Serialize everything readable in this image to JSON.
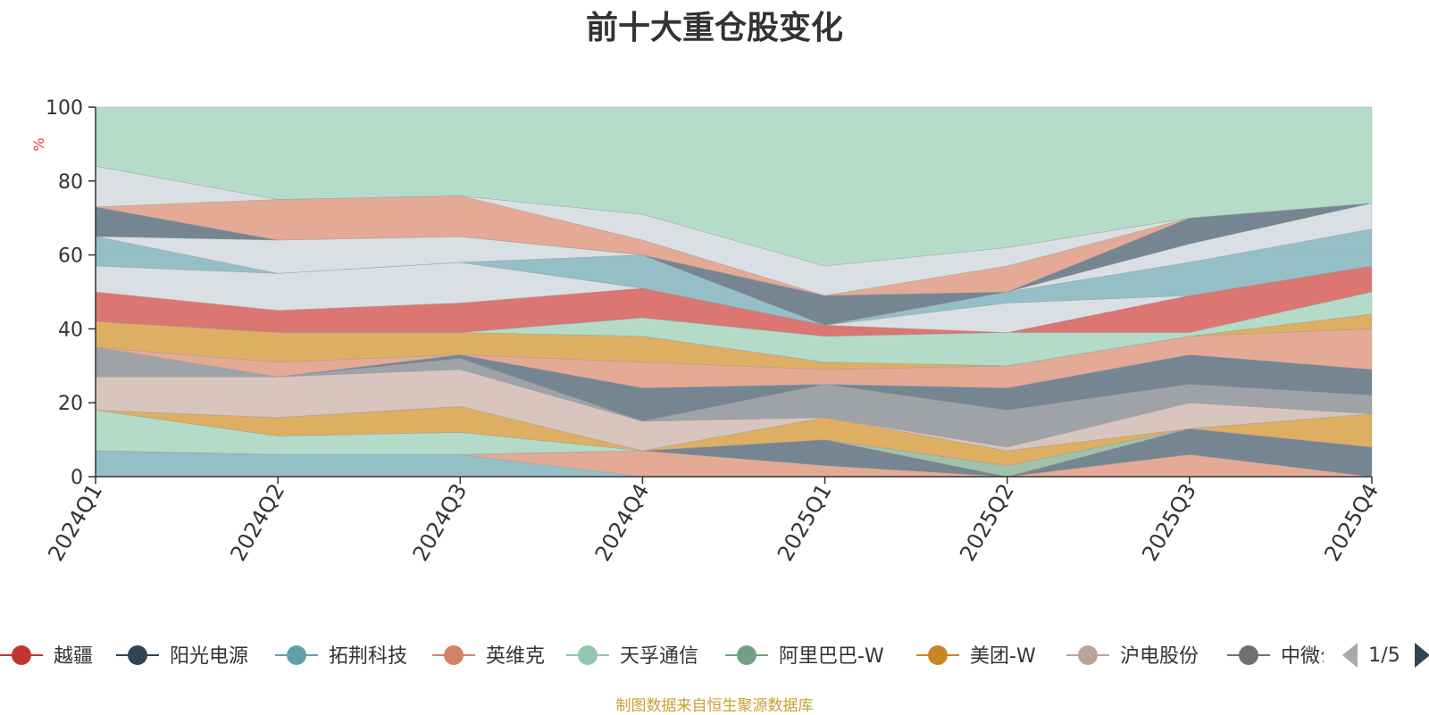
{
  "chart_data": {
    "type": "area",
    "stacked": true,
    "title": "前十大重仓股变化",
    "ylabel": "%",
    "ylim": [
      0,
      100
    ],
    "y_ticks": [
      0,
      20,
      40,
      60,
      80,
      100
    ],
    "categories": [
      "2024Q1",
      "2024Q2",
      "2024Q3",
      "2024Q4",
      "2025Q1",
      "2025Q2",
      "2025Q3",
      "2025Q4"
    ],
    "series": [
      {
        "name": "拓荆科技",
        "color": "#8fbcc3",
        "values": [
          7,
          6,
          6,
          0,
          0,
          0,
          0,
          0
        ]
      },
      {
        "name": "英维克",
        "color": "#e3a590",
        "values": [
          0,
          0,
          0,
          7,
          7,
          0,
          6,
          8
        ]
      },
      {
        "name": "越疆",
        "color": "#d96f6c",
        "values": [
          0,
          0,
          0,
          0,
          3,
          0,
          0,
          0
        ]
      },
      {
        "name": "阳光电源",
        "color": "#6e7f8c",
        "values": [
          0,
          0,
          0,
          0,
          0,
          0,
          7,
          0
        ]
      },
      {
        "name": "阿里巴巴-W",
        "color": "#9bbfa6",
        "values": [
          0,
          0,
          0,
          0,
          0,
          0,
          0,
          0
        ]
      },
      {
        "name": "天孚通信",
        "color": "#afd9c4",
        "values": [
          11,
          5,
          7,
          1,
          6,
          1,
          0,
          0
        ]
      },
      {
        "name": "美团-W",
        "color": "#dcaa5a",
        "values": [
          0,
          5,
          6,
          0,
          0,
          0,
          0,
          0
        ]
      },
      {
        "name": "沪电股份",
        "color": "#d6c2bb",
        "values": [
          9,
          11,
          10,
          7,
          0,
          6,
          0,
          0
        ]
      },
      {
        "name": "中微公司",
        "color": "#9a9da2",
        "values": [
          8,
          0,
          0,
          0,
          0,
          10,
          0,
          0
        ]
      }
    ],
    "legend": [
      "越疆",
      "阳光电源",
      "拓荆科技",
      "英维克",
      "天孚通信",
      "阿里巴巴-W",
      "美团-W",
      "沪电股份",
      "中微公司"
    ],
    "legend_colors": [
      "#c23531",
      "#2f4554",
      "#61a0a8",
      "#d48265",
      "#91c7ae",
      "#749f83",
      "#ca8622",
      "#bda29a",
      "#6e7074"
    ],
    "legend_page": "1/5"
  },
  "layers": [
    [
      0,
      0,
      0,
      0,
      0,
      0,
      0,
      0
    ],
    [
      7,
      6,
      6,
      0,
      0,
      0,
      0,
      0
    ],
    [
      7,
      6,
      6,
      7,
      3,
      0,
      6,
      0
    ],
    [
      7,
      6,
      6,
      7,
      10,
      0,
      13,
      8
    ],
    [
      7,
      6,
      6,
      7,
      10,
      3,
      13,
      8
    ],
    [
      18,
      11,
      12,
      7,
      10,
      3,
      13,
      8
    ],
    [
      18,
      16,
      19,
      7,
      16,
      7,
      13,
      17
    ],
    [
      27,
      27,
      29,
      15,
      16,
      8,
      20,
      17
    ],
    [
      35,
      27,
      32,
      15,
      25,
      18,
      25,
      22
    ],
    [
      35,
      27,
      33,
      24,
      25,
      24,
      33,
      29
    ],
    [
      35,
      31,
      33,
      31,
      29,
      30,
      38,
      40
    ],
    [
      42,
      39,
      39,
      38,
      31,
      30,
      38,
      44
    ],
    [
      42,
      39,
      39,
      43,
      38,
      39,
      39,
      50
    ],
    [
      50,
      45,
      47,
      51,
      41,
      39,
      49,
      57
    ],
    [
      57,
      55,
      58,
      51,
      41,
      47,
      49,
      57
    ],
    [
      65,
      55,
      58,
      60,
      41,
      50,
      58,
      67
    ],
    [
      65,
      64,
      65,
      60,
      41,
      50,
      63,
      74
    ],
    [
      73,
      64,
      65,
      60,
      49,
      50,
      70,
      74
    ],
    [
      73,
      75,
      76,
      64,
      49,
      57,
      70,
      74
    ],
    [
      84,
      75,
      76,
      71,
      57,
      62,
      70,
      74
    ],
    [
      100,
      100,
      100,
      100,
      100,
      100,
      100,
      100
    ]
  ],
  "layer_colors": [
    "#8fbcc3",
    "#e3a590",
    "#6e7f8c",
    "#9bbfa6",
    "#afd9c4",
    "#dcaa5a",
    "#d6c2bb",
    "#9a9da2",
    "#6e7f8c",
    "#e3a590",
    "#dcaa5a",
    "#afd9c4",
    "#d96f6c",
    "#d8dde2",
    "#8fbcc3",
    "#d8dde2",
    "#6e7f8c",
    "#e3a590",
    "#d8dde2",
    "#b1d9c6"
  ],
  "source_text": "制图数据来自恒生聚源数据库"
}
